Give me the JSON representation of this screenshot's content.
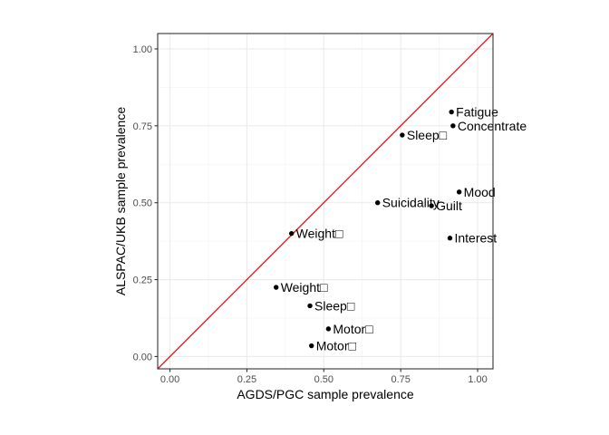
{
  "chart_data": {
    "type": "scatter",
    "xlabel": "AGDS/PGC sample prevalence",
    "ylabel": "ALSPAC/UKB sample prevalence",
    "xlim": [
      -0.04,
      1.05
    ],
    "ylim": [
      -0.04,
      1.05
    ],
    "x_ticks": [
      0,
      0.25,
      0.5,
      0.75,
      1
    ],
    "x_tick_labels": [
      "0.00",
      "0.25",
      "0.50",
      "0.75",
      "1.00"
    ],
    "y_ticks": [
      0,
      0.25,
      0.5,
      0.75,
      1
    ],
    "y_tick_labels": [
      "0.00",
      "0.25",
      "0.50",
      "0.75",
      "1.00"
    ],
    "grid": true,
    "reference_line": {
      "slope": 1,
      "intercept": 0,
      "color": "#ff0000"
    },
    "points": [
      {
        "label": "Fatigue",
        "x": 0.915,
        "y": 0.795
      },
      {
        "label": "Concentrate",
        "x": 0.92,
        "y": 0.75
      },
      {
        "label": "Sleep□",
        "x": 0.755,
        "y": 0.72
      },
      {
        "label": "Mood",
        "x": 0.94,
        "y": 0.535
      },
      {
        "label": "Suicidality",
        "x": 0.675,
        "y": 0.5
      },
      {
        "label": "Guilt",
        "x": 0.85,
        "y": 0.49
      },
      {
        "label": "Interest",
        "x": 0.91,
        "y": 0.385
      },
      {
        "label": "Weight□",
        "x": 0.395,
        "y": 0.4
      },
      {
        "label": "Weight□",
        "x": 0.345,
        "y": 0.225
      },
      {
        "label": "Sleep□",
        "x": 0.455,
        "y": 0.165
      },
      {
        "label": "Motor□",
        "x": 0.515,
        "y": 0.09
      },
      {
        "label": "Motor□",
        "x": 0.46,
        "y": 0.035
      }
    ]
  }
}
